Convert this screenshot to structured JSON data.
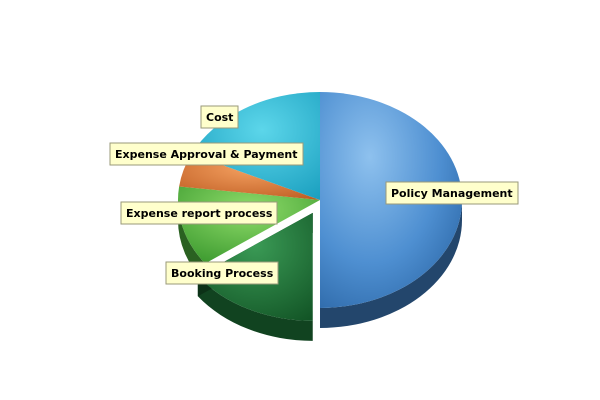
{
  "chart_data": {
    "type": "pie",
    "title": "",
    "slices": [
      {
        "label": "Policy Management",
        "value": 50,
        "color": "#3f7fc4"
      },
      {
        "label": "Booking Process",
        "value": 15,
        "color": "#1f7a3a"
      },
      {
        "label": "Expense report process",
        "value": 12,
        "color": "#4cb13c"
      },
      {
        "label": "Expense Approval & Payment",
        "value": 5,
        "color": "#d8722c"
      },
      {
        "label": "Cost",
        "value": 18,
        "color": "#22b9d4"
      }
    ],
    "exploded": [
      "Booking Process"
    ],
    "legend": "none",
    "labels": "callout boxes"
  }
}
